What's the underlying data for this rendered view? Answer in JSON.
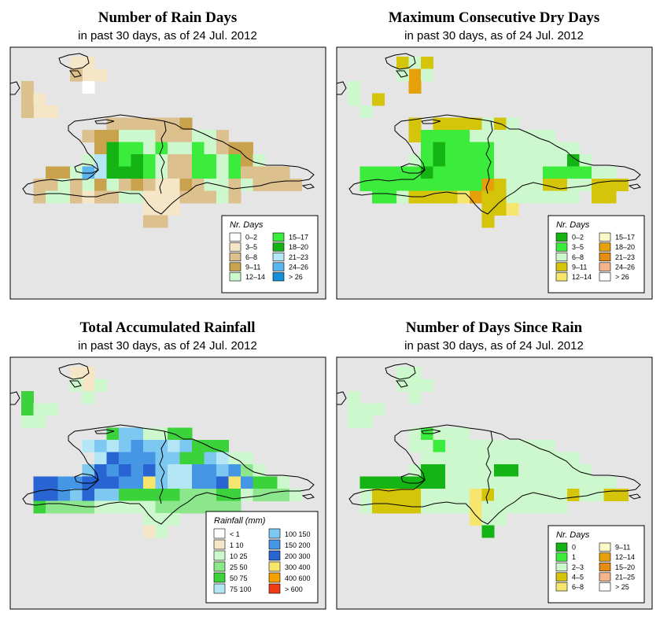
{
  "panels": [
    {
      "id": "rain_days",
      "title": "Number of Rain Days",
      "subtitle": "in past 30 days, as of  24 Jul. 2012",
      "legend_title": "Nr. Days",
      "legend": [
        {
          "label": "0–2",
          "color": "#ffffff"
        },
        {
          "label": "3–5",
          "color": "#f5e6c8"
        },
        {
          "label": "6–8",
          "color": "#dcc08e"
        },
        {
          "label": "9–11",
          "color": "#c9a24e"
        },
        {
          "label": "12–14",
          "color": "#cdf8cd"
        },
        {
          "label": "15–17",
          "color": "#3cec3c"
        },
        {
          "label": "18–20",
          "color": "#14b414"
        },
        {
          "label": "21–23",
          "color": "#b4e6f6"
        },
        {
          "label": "24–26",
          "color": "#5ab4f0"
        },
        {
          "label": "> 26",
          "color": "#1490d8"
        }
      ]
    },
    {
      "id": "max_dry_days",
      "title": "Maximum Consecutive Dry Days",
      "subtitle": "in past 30 days, as of  24 Jul. 2012",
      "legend_title": "Nr. Days",
      "legend": [
        {
          "label": "0–2",
          "color": "#14b414"
        },
        {
          "label": "3–5",
          "color": "#3cec3c"
        },
        {
          "label": "6–8",
          "color": "#cdf8cd"
        },
        {
          "label": "9–11",
          "color": "#d4c40a"
        },
        {
          "label": "12–14",
          "color": "#f6e66e"
        },
        {
          "label": "15–17",
          "color": "#fafac8"
        },
        {
          "label": "18–20",
          "color": "#e6a00a"
        },
        {
          "label": "21–23",
          "color": "#e68c14"
        },
        {
          "label": "24–26",
          "color": "#f6b48c"
        },
        {
          "label": "> 26",
          "color": "#ffffff"
        }
      ]
    },
    {
      "id": "total_rainfall",
      "title": "Total Accumulated Rainfall",
      "subtitle": "in past 30 days, as of  24 Jul. 2012",
      "legend_title": "Rainfall (mm)",
      "legend": [
        {
          "label": "< 1",
          "color": "#ffffff"
        },
        {
          "label": "1    10",
          "color": "#f5e6c8"
        },
        {
          "label": "10    25",
          "color": "#cdf8cd"
        },
        {
          "label": "25    50",
          "color": "#8ce68c"
        },
        {
          "label": "50    75",
          "color": "#3cd23c"
        },
        {
          "label": "75  100",
          "color": "#b4e6f6"
        },
        {
          "label": "100  150",
          "color": "#7cc8f0"
        },
        {
          "label": "150  200",
          "color": "#4696e6"
        },
        {
          "label": "200  300",
          "color": "#2864d2"
        },
        {
          "label": "300  400",
          "color": "#f6e66e"
        },
        {
          "label": "400  600",
          "color": "#f6a000"
        },
        {
          "label": "> 600",
          "color": "#f03c14"
        }
      ]
    },
    {
      "id": "days_since_rain",
      "title": "Number of Days Since Rain",
      "subtitle": "in past 30 days, as of  24 Jul. 2012",
      "legend_title": "Nr. Days",
      "legend": [
        {
          "label": "0",
          "color": "#14b414"
        },
        {
          "label": "1",
          "color": "#3cec3c"
        },
        {
          "label": "2–3",
          "color": "#cdf8cd"
        },
        {
          "label": "4–5",
          "color": "#d4c40a"
        },
        {
          "label": "6–8",
          "color": "#f6e66e"
        },
        {
          "label": "9–11",
          "color": "#fafac8"
        },
        {
          "label": "12–14",
          "color": "#e6a00a"
        },
        {
          "label": "15–20",
          "color": "#e68c14"
        },
        {
          "label": "21–25",
          "color": "#f6b48c"
        },
        {
          "label": "> 25",
          "color": "#ffffff"
        }
      ]
    }
  ],
  "map_grids": {
    "rain_days": "...........@...........|....88@..............|....8..................|7...............|...|88...............|...|.............8888....|........888888.88.8..|........888877778788.8..|.........8765577888777....|.........5556556677877788.|...8887566776785776877778.|..88.877.888888988888878.9.|...8887.7..8898888988888...|..........8888................",
    "max_dry_days": "",
    "total_rainfall": "",
    "days_since_rain": ""
  },
  "colors": {
    "map_background": "#e5e5e5",
    "outline": "#000000"
  }
}
